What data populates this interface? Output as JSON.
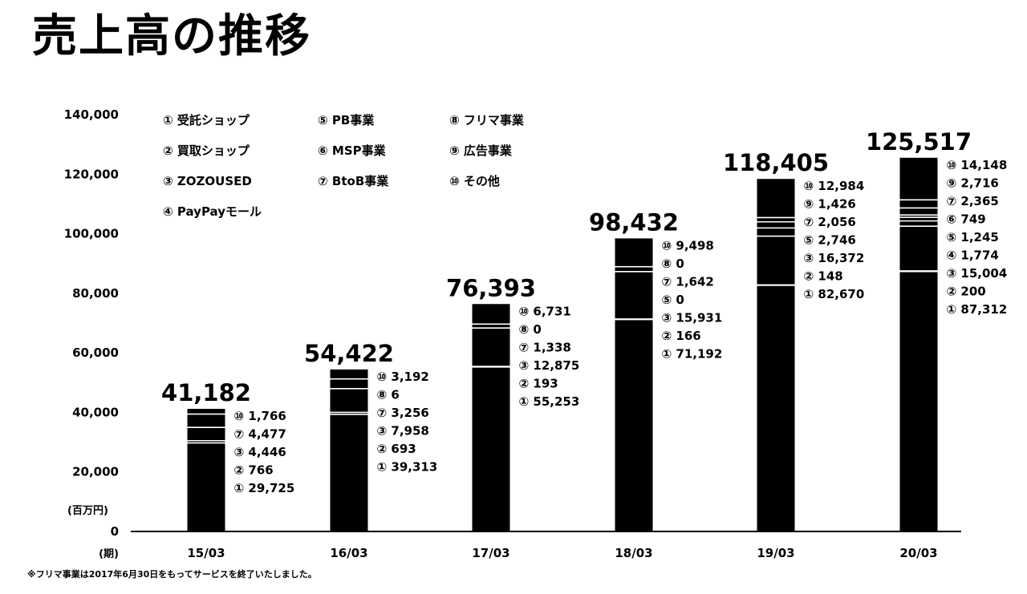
{
  "title": "売上高の推移",
  "footnote": "※フリマ事業は2017年6月30日をもってサービスを終了いたしました。",
  "chart_data": {
    "type": "bar",
    "stacked": true,
    "unit_label": "(百万円)",
    "period_label": "(期)",
    "ylim": [
      0,
      140000
    ],
    "yticks": [
      "0",
      "20,000",
      "40,000",
      "60,000",
      "80,000",
      "100,000",
      "120,000",
      "140,000"
    ],
    "legend": [
      {
        "num": "①",
        "name": "受託ショップ"
      },
      {
        "num": "②",
        "name": "買取ショップ"
      },
      {
        "num": "③",
        "name": "ZOZOUSED"
      },
      {
        "num": "④",
        "name": "PayPayモール"
      },
      {
        "num": "⑤",
        "name": "PB事業"
      },
      {
        "num": "⑥",
        "name": "MSP事業"
      },
      {
        "num": "⑦",
        "name": "BtoB事業"
      },
      {
        "num": "⑧",
        "name": "フリマ事業"
      },
      {
        "num": "⑨",
        "name": "広告事業"
      },
      {
        "num": "⑩",
        "name": "その他"
      }
    ],
    "categories": [
      "15/03",
      "16/03",
      "17/03",
      "18/03",
      "19/03",
      "20/03"
    ],
    "totals": [
      "41,182",
      "54,422",
      "76,393",
      "98,432",
      "118,405",
      "125,517"
    ],
    "bars": [
      {
        "segments": [
          {
            "num": "①",
            "value": 29725,
            "label": "29,725"
          },
          {
            "num": "②",
            "value": 766,
            "label": "766"
          },
          {
            "num": "③",
            "value": 4446,
            "label": "4,446"
          },
          {
            "num": "⑦",
            "value": 4477,
            "label": "4,477"
          },
          {
            "num": "⑩",
            "value": 1766,
            "label": "1,766"
          }
        ]
      },
      {
        "segments": [
          {
            "num": "①",
            "value": 39313,
            "label": "39,313"
          },
          {
            "num": "②",
            "value": 693,
            "label": "693"
          },
          {
            "num": "③",
            "value": 7958,
            "label": "7,958"
          },
          {
            "num": "⑦",
            "value": 3256,
            "label": "3,256"
          },
          {
            "num": "⑧",
            "value": 6,
            "label": "6"
          },
          {
            "num": "⑩",
            "value": 3192,
            "label": "3,192"
          }
        ]
      },
      {
        "segments": [
          {
            "num": "①",
            "value": 55253,
            "label": "55,253"
          },
          {
            "num": "②",
            "value": 193,
            "label": "193"
          },
          {
            "num": "③",
            "value": 12875,
            "label": "12,875"
          },
          {
            "num": "⑦",
            "value": 1338,
            "label": "1,338"
          },
          {
            "num": "⑧",
            "value": 0,
            "label": "0"
          },
          {
            "num": "⑩",
            "value": 6731,
            "label": "6,731"
          }
        ]
      },
      {
        "segments": [
          {
            "num": "①",
            "value": 71192,
            "label": "71,192"
          },
          {
            "num": "②",
            "value": 166,
            "label": "166"
          },
          {
            "num": "③",
            "value": 15931,
            "label": "15,931"
          },
          {
            "num": "⑤",
            "value": 0,
            "label": "0"
          },
          {
            "num": "⑦",
            "value": 1642,
            "label": "1,642"
          },
          {
            "num": "⑧",
            "value": 0,
            "label": "0"
          },
          {
            "num": "⑩",
            "value": 9498,
            "label": "9,498"
          }
        ]
      },
      {
        "segments": [
          {
            "num": "①",
            "value": 82670,
            "label": "82,670"
          },
          {
            "num": "②",
            "value": 148,
            "label": "148"
          },
          {
            "num": "③",
            "value": 16372,
            "label": "16,372"
          },
          {
            "num": "⑤",
            "value": 2746,
            "label": "2,746"
          },
          {
            "num": "⑦",
            "value": 2056,
            "label": "2,056"
          },
          {
            "num": "⑨",
            "value": 1426,
            "label": "1,426"
          },
          {
            "num": "⑩",
            "value": 12984,
            "label": "12,984"
          }
        ]
      },
      {
        "segments": [
          {
            "num": "①",
            "value": 87312,
            "label": "87,312"
          },
          {
            "num": "②",
            "value": 200,
            "label": "200"
          },
          {
            "num": "③",
            "value": 15004,
            "label": "15,004"
          },
          {
            "num": "④",
            "value": 1774,
            "label": "1,774"
          },
          {
            "num": "⑤",
            "value": 1245,
            "label": "1,245"
          },
          {
            "num": "⑥",
            "value": 749,
            "label": "749"
          },
          {
            "num": "⑦",
            "value": 2365,
            "label": "2,365"
          },
          {
            "num": "⑨",
            "value": 2716,
            "label": "2,716"
          },
          {
            "num": "⑩",
            "value": 14148,
            "label": "14,148"
          }
        ]
      }
    ]
  }
}
